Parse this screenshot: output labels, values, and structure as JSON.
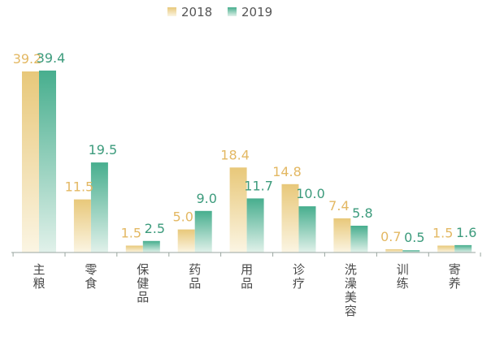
{
  "chart_data": {
    "type": "bar",
    "title": "",
    "xlabel": "",
    "ylabel": "",
    "grid": false,
    "legend_position": "top-center",
    "ylim": [
      0,
      40
    ],
    "categories": [
      "主粮",
      "零食",
      "保健品",
      "药品",
      "用品",
      "诊疗",
      "洗澡美容",
      "训练",
      "寄养"
    ],
    "series": [
      {
        "name": "2018",
        "values": [
          39.2,
          11.5,
          1.5,
          5.0,
          18.4,
          14.8,
          7.4,
          0.7,
          1.5
        ],
        "labels": [
          "39.2",
          "11.5",
          "1.5",
          "5.0",
          "18.4",
          "14.8",
          "7.4",
          "0.7",
          "1.5"
        ],
        "color_top": "#e8c87a",
        "color_bottom": "#fbf5e3",
        "label_color": "#e3b863"
      },
      {
        "name": "2019",
        "values": [
          39.4,
          19.5,
          2.5,
          9.0,
          11.7,
          10.0,
          5.8,
          0.5,
          1.6
        ],
        "labels": [
          "39.4",
          "19.5",
          "2.5",
          "9.0",
          "11.7",
          "10.0",
          "5.8",
          "0.5",
          "1.6"
        ],
        "color_top": "#47ae8e",
        "color_bottom": "#e1f1ea",
        "label_color": "#3c9b7c"
      }
    ],
    "axis_color": "#9aa6a0",
    "tick_label_color": "#4a4a4a"
  }
}
